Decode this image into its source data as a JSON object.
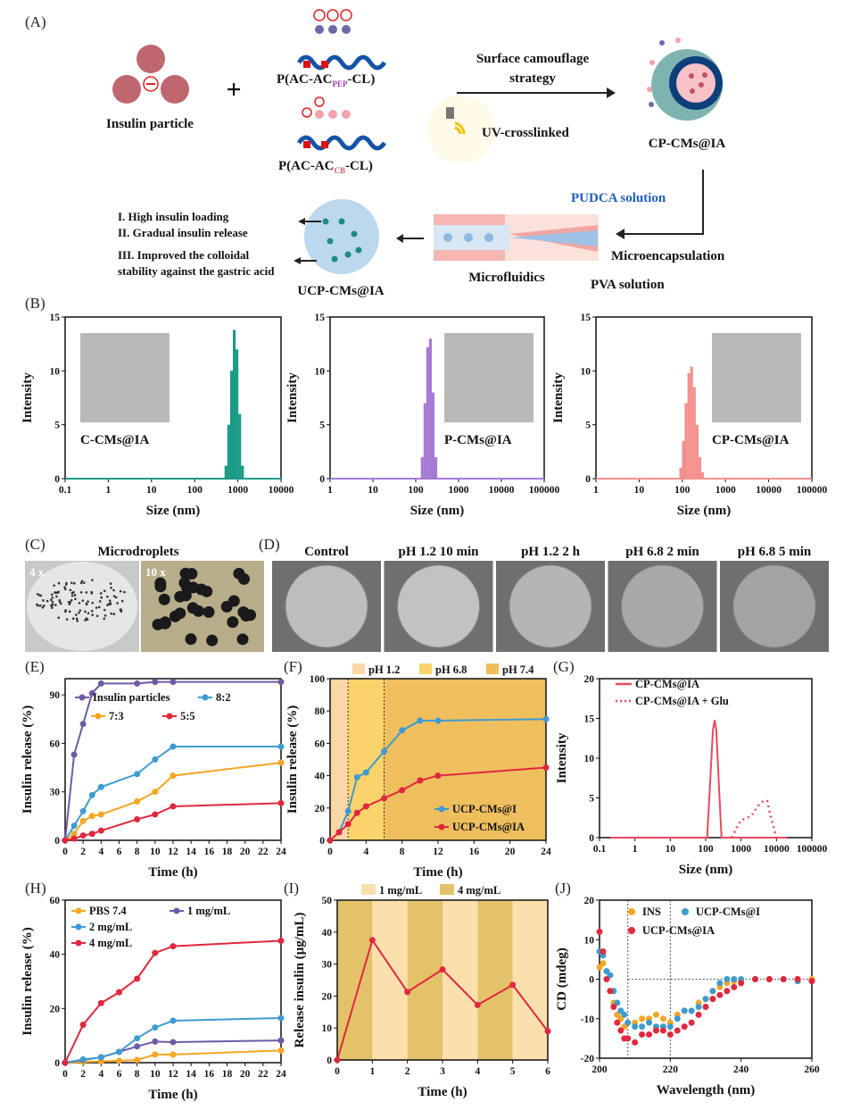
{
  "panel_labels": [
    "(A)",
    "(B)",
    "(C)",
    "(D)",
    "(E)",
    "(F)",
    "(G)",
    "(H)",
    "(I)",
    "(J)"
  ],
  "schematic": {
    "insulin_particle": "Insulin particle",
    "polymer_pep": "P(AC-AC",
    "polymer_pep_sub": "PEP",
    "polymer_cb": "P(AC-AC",
    "polymer_cb_sub": "CB",
    "polymer_suffix": "-CL)",
    "surface_camouflage": "Surface camouflage",
    "strategy": "strategy",
    "uv": "UV-crosslinked",
    "cp_cms": "CP-CMs@IA",
    "pudca": "PUDCA solution",
    "microencapsulation": "Microencapsulation",
    "microfluidics": "Microfluidics",
    "pva": "PVA solution",
    "ucp_cms": "UCP-CMs@IA",
    "benefit_1": "I. High insulin loading",
    "benefit_2": "II. Gradual insulin release",
    "benefit_3a": "III. Improved the colloidal",
    "benefit_3b": "stability against the gastric acid",
    "colors": {
      "particle": "#c0666f",
      "pudca": "#1f5fbf",
      "shell": "#7fb3b0",
      "core": "#0d3f7a"
    }
  },
  "microdroplets": {
    "title": "Microdroplets",
    "mag_4x": "4 x",
    "mag_10x": "10 x"
  },
  "sem": {
    "titles": [
      "Control",
      "pH 1.2 10 min",
      "pH 1.2 2 h",
      "pH 6.8 2 min",
      "pH 6.8 5 min"
    ]
  },
  "chart_data": [
    {
      "id": "B1",
      "type": "bar",
      "xscale": "log",
      "xlim": [
        0.1,
        10000
      ],
      "ylim": [
        0,
        15
      ],
      "xticks": [
        "0.1",
        "1",
        "10",
        "100",
        "1000",
        "10000"
      ],
      "yticks": [
        "0",
        "5",
        "10",
        "15"
      ],
      "xlabel": "Size (nm)",
      "ylabel": "Intensity",
      "annotation": "C-CMs@IA",
      "color": "#1a9a86",
      "x": [
        531,
        615,
        712,
        825,
        955,
        1106,
        1281
      ],
      "values": [
        1.2,
        5,
        10,
        13.8,
        12,
        6,
        1.2
      ]
    },
    {
      "id": "B2",
      "type": "bar",
      "xscale": "log",
      "xlim": [
        1,
        100000
      ],
      "ylim": [
        0,
        15
      ],
      "xticks": [
        "1",
        "10",
        "100",
        "1000",
        "10000",
        "100000"
      ],
      "yticks": [
        "0",
        "5",
        "10",
        "15"
      ],
      "xlabel": "Size (nm)",
      "ylabel": "Intensity",
      "annotation": "P-CMs@IA",
      "color": "#a57ad6",
      "x": [
        142,
        164,
        190,
        220,
        255,
        295
      ],
      "values": [
        2,
        7,
        12.2,
        13,
        8,
        2
      ]
    },
    {
      "id": "B3",
      "type": "bar",
      "xscale": "log",
      "xlim": [
        1,
        100000
      ],
      "ylim": [
        0,
        15
      ],
      "xticks": [
        "1",
        "10",
        "100",
        "1000",
        "10000",
        "100000"
      ],
      "yticks": [
        "0",
        "5",
        "10",
        "15"
      ],
      "xlabel": "Size (nm)",
      "ylabel": "Intensity",
      "annotation": "CP-CMs@IA",
      "color": "#f4908c",
      "x": [
        92,
        106,
        122,
        142,
        164,
        190,
        220,
        255,
        295
      ],
      "values": [
        1,
        3.5,
        7,
        9.8,
        10.4,
        8.5,
        5,
        2,
        0.6
      ]
    },
    {
      "id": "E",
      "type": "line",
      "xlim": [
        0,
        24
      ],
      "ylim": [
        0,
        100
      ],
      "xticks": [
        "0",
        "2",
        "4",
        "6",
        "8",
        "10",
        "12",
        "14",
        "16",
        "18",
        "20",
        "22",
        "24"
      ],
      "yticks": [
        "0",
        "30",
        "60",
        "90"
      ],
      "xlabel": "Time (h)",
      "ylabel": "Insulin release (%)",
      "x": [
        0,
        1,
        2,
        3,
        4,
        8,
        10,
        12,
        24
      ],
      "series": [
        {
          "name": "Insulin particles",
          "color": "#6f5aa6",
          "values": [
            0,
            53,
            72,
            91,
            97,
            97,
            98,
            98,
            98
          ]
        },
        {
          "name": "8:2",
          "color": "#3e9bd1",
          "values": [
            0,
            9,
            18,
            28,
            33,
            41,
            50,
            58,
            58
          ]
        },
        {
          "name": "7:3",
          "color": "#f5a623",
          "values": [
            0,
            4,
            12,
            15,
            16,
            24,
            30,
            40,
            48
          ]
        },
        {
          "name": "5:5",
          "color": "#e0283e",
          "values": [
            0,
            1,
            3,
            4,
            6,
            13,
            16,
            21,
            23
          ]
        }
      ]
    },
    {
      "id": "F",
      "type": "line",
      "xlim": [
        0,
        24
      ],
      "ylim": [
        0,
        100
      ],
      "xticks": [
        "0",
        "4",
        "8",
        "12",
        "16",
        "20",
        "24"
      ],
      "yticks": [
        "0",
        "20",
        "40",
        "60",
        "80",
        "100"
      ],
      "xlabel": "Time (h)",
      "ylabel": "Insulin release (%)",
      "bands": [
        {
          "name": "pH 1.2",
          "from": 0,
          "to": 2,
          "color": "#fad7a8"
        },
        {
          "name": "pH 6.8",
          "from": 2,
          "to": 6,
          "color": "#fbd36a"
        },
        {
          "name": "pH 7.4",
          "from": 6,
          "to": 24,
          "color": "#efbf5e"
        }
      ],
      "x": [
        0,
        1,
        2,
        3,
        4,
        6,
        8,
        10,
        12,
        24
      ],
      "series": [
        {
          "name": "UCP-CMs@I",
          "color": "#3e9bd1",
          "values": [
            0,
            5,
            18,
            39,
            42,
            55,
            68,
            74,
            74,
            75
          ]
        },
        {
          "name": "UCP-CMs@IA",
          "color": "#e0283e",
          "values": [
            0,
            5,
            10,
            17,
            21,
            26,
            31,
            37,
            40,
            45
          ]
        }
      ]
    },
    {
      "id": "G",
      "type": "line",
      "xscale": "log",
      "xlim": [
        0.1,
        100000
      ],
      "ylim": [
        0,
        20
      ],
      "xticks": [
        "0.1",
        "1",
        "10",
        "100",
        "1000",
        "10000",
        "100000"
      ],
      "yticks": [
        "0",
        "5",
        "10",
        "15",
        "20"
      ],
      "xlabel": "Size (nm)",
      "ylabel": "Intensity",
      "series": [
        {
          "name": "CP-CMs@IA",
          "color": "#e84a5f",
          "style": "solid",
          "x": [
            0.2,
            110,
            130,
            160,
            180,
            200,
            240,
            280,
            20000
          ],
          "values": [
            0,
            0,
            6,
            13.5,
            14.8,
            13.5,
            6,
            0,
            0
          ]
        },
        {
          "name": "CP-CMs@IA + Glu",
          "color": "#e84a5f",
          "style": "dotted",
          "x": [
            550,
            800,
            1000,
            1500,
            2000,
            3000,
            4500,
            5500,
            7000,
            10000
          ],
          "values": [
            0,
            1.5,
            2.2,
            2.5,
            2.8,
            4,
            4.7,
            4.6,
            2.5,
            0
          ]
        }
      ]
    },
    {
      "id": "H",
      "type": "line",
      "xlim": [
        0,
        24
      ],
      "ylim": [
        0,
        60
      ],
      "xticks": [
        "0",
        "2",
        "4",
        "6",
        "8",
        "10",
        "12",
        "14",
        "16",
        "18",
        "20",
        "22",
        "24"
      ],
      "yticks": [
        "0",
        "20",
        "40",
        "60"
      ],
      "xlabel": "Time (h)",
      "ylabel": "Insulin release (%)",
      "x": [
        0,
        2,
        4,
        6,
        8,
        10,
        12,
        24
      ],
      "series": [
        {
          "name": "PBS 7.4",
          "color": "#f5a623",
          "values": [
            0,
            0.3,
            0.5,
            0.7,
            1,
            3,
            3,
            4.5
          ]
        },
        {
          "name": "1 mg/mL",
          "color": "#6f5aa6",
          "values": [
            0,
            1,
            2,
            4,
            6,
            7.8,
            7.6,
            8.2
          ]
        },
        {
          "name": "2 mg/mL",
          "color": "#3e9bd1",
          "values": [
            0,
            1.2,
            2,
            4,
            9,
            13,
            15.5,
            16.5
          ]
        },
        {
          "name": "4 mg/mL",
          "color": "#e0283e",
          "values": [
            0,
            14,
            22,
            26,
            31,
            40.5,
            43,
            45
          ]
        }
      ]
    },
    {
      "id": "I",
      "type": "line",
      "xlim": [
        0,
        6
      ],
      "ylim": [
        0,
        50
      ],
      "xticks": [
        "0",
        "1",
        "2",
        "3",
        "4",
        "5",
        "6"
      ],
      "yticks": [
        "0",
        "10",
        "20",
        "30",
        "40",
        "50"
      ],
      "xlabel": "Time (h)",
      "ylabel": "Release insulin (μg/mL)",
      "bands": [
        {
          "name": "4 mg/mL",
          "from": 0,
          "to": 1,
          "color": "#e3c26a"
        },
        {
          "name": "1 mg/mL",
          "from": 1,
          "to": 2,
          "color": "#fbe0ae"
        },
        {
          "name": "4 mg/mL",
          "from": 2,
          "to": 3,
          "color": "#e3c26a"
        },
        {
          "name": "1 mg/mL",
          "from": 3,
          "to": 4,
          "color": "#fbe0ae"
        },
        {
          "name": "4 mg/mL",
          "from": 4,
          "to": 5,
          "color": "#e3c26a"
        },
        {
          "name": "1 mg/mL",
          "from": 5,
          "to": 6,
          "color": "#fbe0ae"
        }
      ],
      "legend": [
        {
          "name": "1 mg/mL",
          "color": "#fbe0ae"
        },
        {
          "name": "4 mg/mL",
          "color": "#e3c26a"
        }
      ],
      "x": [
        0,
        1,
        2,
        3,
        4,
        5,
        6
      ],
      "series": [
        {
          "color": "#e0283e",
          "values": [
            0,
            37.5,
            21.3,
            28.3,
            17.2,
            23.5,
            9
          ]
        }
      ]
    },
    {
      "id": "J",
      "type": "scatter",
      "xlim": [
        200,
        260
      ],
      "ylim": [
        -20,
        20
      ],
      "xticks": [
        "200",
        "220",
        "240",
        "260"
      ],
      "yticks": [
        "-20",
        "-10",
        "0",
        "10",
        "20"
      ],
      "xlabel": "Wavelength (nm)",
      "ylabel": "CD (mdeg)",
      "reference_lines": {
        "x": [
          208,
          220
        ],
        "y": [
          0
        ]
      },
      "x": [
        200,
        201,
        202,
        203,
        204,
        205,
        206,
        207,
        208,
        210,
        212,
        214,
        216,
        218,
        220,
        222,
        224,
        226,
        228,
        230,
        232,
        234,
        236,
        238,
        240,
        244,
        248,
        252,
        256,
        260
      ],
      "series": [
        {
          "name": "INS",
          "color": "#f5a623",
          "values": [
            3,
            4,
            2,
            -3,
            -6,
            -9,
            -10,
            -12,
            -11,
            -11,
            -10,
            -10,
            -9,
            -10,
            -11,
            -9,
            -8,
            -8,
            -6,
            -5,
            -3,
            -2,
            -1,
            -0.5,
            -0.3,
            0,
            0,
            0,
            0,
            0
          ]
        },
        {
          "name": "UCP-CMs@I",
          "color": "#3e9bd1",
          "values": [
            7,
            6,
            2,
            1,
            -3,
            -6,
            -8,
            -9,
            -11,
            -12,
            -12,
            -11,
            -12,
            -12,
            -12,
            -10,
            -8,
            -8,
            -7,
            -5,
            -3,
            -1,
            0,
            0,
            0,
            0,
            0,
            0,
            -0.5,
            -0.5
          ]
        },
        {
          "name": "UCP-CMs@IA",
          "color": "#e0283e",
          "values": [
            12,
            7,
            0,
            -3,
            -7,
            -11,
            -13,
            -15,
            -15,
            -16,
            -14,
            -14,
            -13,
            -13,
            -14,
            -13,
            -12,
            -11,
            -9,
            -7,
            -5,
            -4,
            -3,
            -2,
            -1,
            0,
            0,
            0,
            0,
            -0.5
          ]
        }
      ]
    }
  ]
}
